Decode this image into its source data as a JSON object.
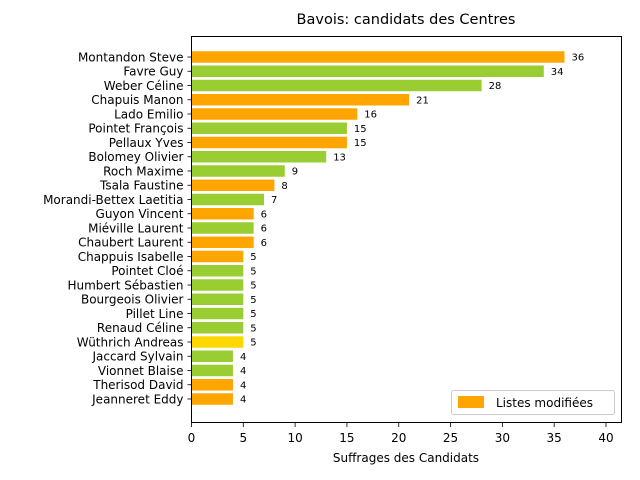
{
  "chart_data": {
    "type": "bar",
    "orientation": "horizontal",
    "title": "Bavois: candidats des Centres",
    "xlabel": "Suffrages des Candidats",
    "ylabel": "",
    "xlim": [
      0,
      41.5
    ],
    "xticks": [
      0,
      5,
      10,
      15,
      20,
      25,
      30,
      35,
      40
    ],
    "grid": false,
    "legend": {
      "label": "Listes modifiées",
      "color": "#FFA500",
      "placement": "lower-right"
    },
    "colors": {
      "orange": "#FFA500",
      "green": "#9ACD32",
      "yellow": "#FFD700"
    },
    "categories": [
      "Montandon Steve",
      "Favre Guy",
      "Weber Céline",
      "Chapuis Manon",
      "Lado Emilio",
      "Pointet François",
      "Pellaux Yves",
      "Bolomey Olivier",
      "Roch Maxime",
      "Tsala Faustine",
      "Morandi-Bettex Laetitia",
      "Guyon Vincent",
      "Miéville Laurent",
      "Chaubert Laurent",
      "Chappuis Isabelle",
      "Pointet Cloé",
      "Humbert Sébastien",
      "Bourgeois Olivier",
      "Pillet Line",
      "Renaud Céline",
      "Wüthrich Andreas",
      "Jaccard Sylvain",
      "Vionnet Blaise",
      "Therisod David",
      "Jeanneret Eddy"
    ],
    "values": [
      36,
      34,
      28,
      21,
      16,
      15,
      15,
      13,
      9,
      8,
      7,
      6,
      6,
      6,
      5,
      5,
      5,
      5,
      5,
      5,
      5,
      4,
      4,
      4,
      4
    ],
    "bar_colors": [
      "orange",
      "green",
      "green",
      "orange",
      "orange",
      "green",
      "orange",
      "green",
      "green",
      "orange",
      "green",
      "orange",
      "green",
      "orange",
      "orange",
      "green",
      "green",
      "green",
      "green",
      "green",
      "yellow",
      "green",
      "green",
      "orange",
      "orange"
    ]
  }
}
